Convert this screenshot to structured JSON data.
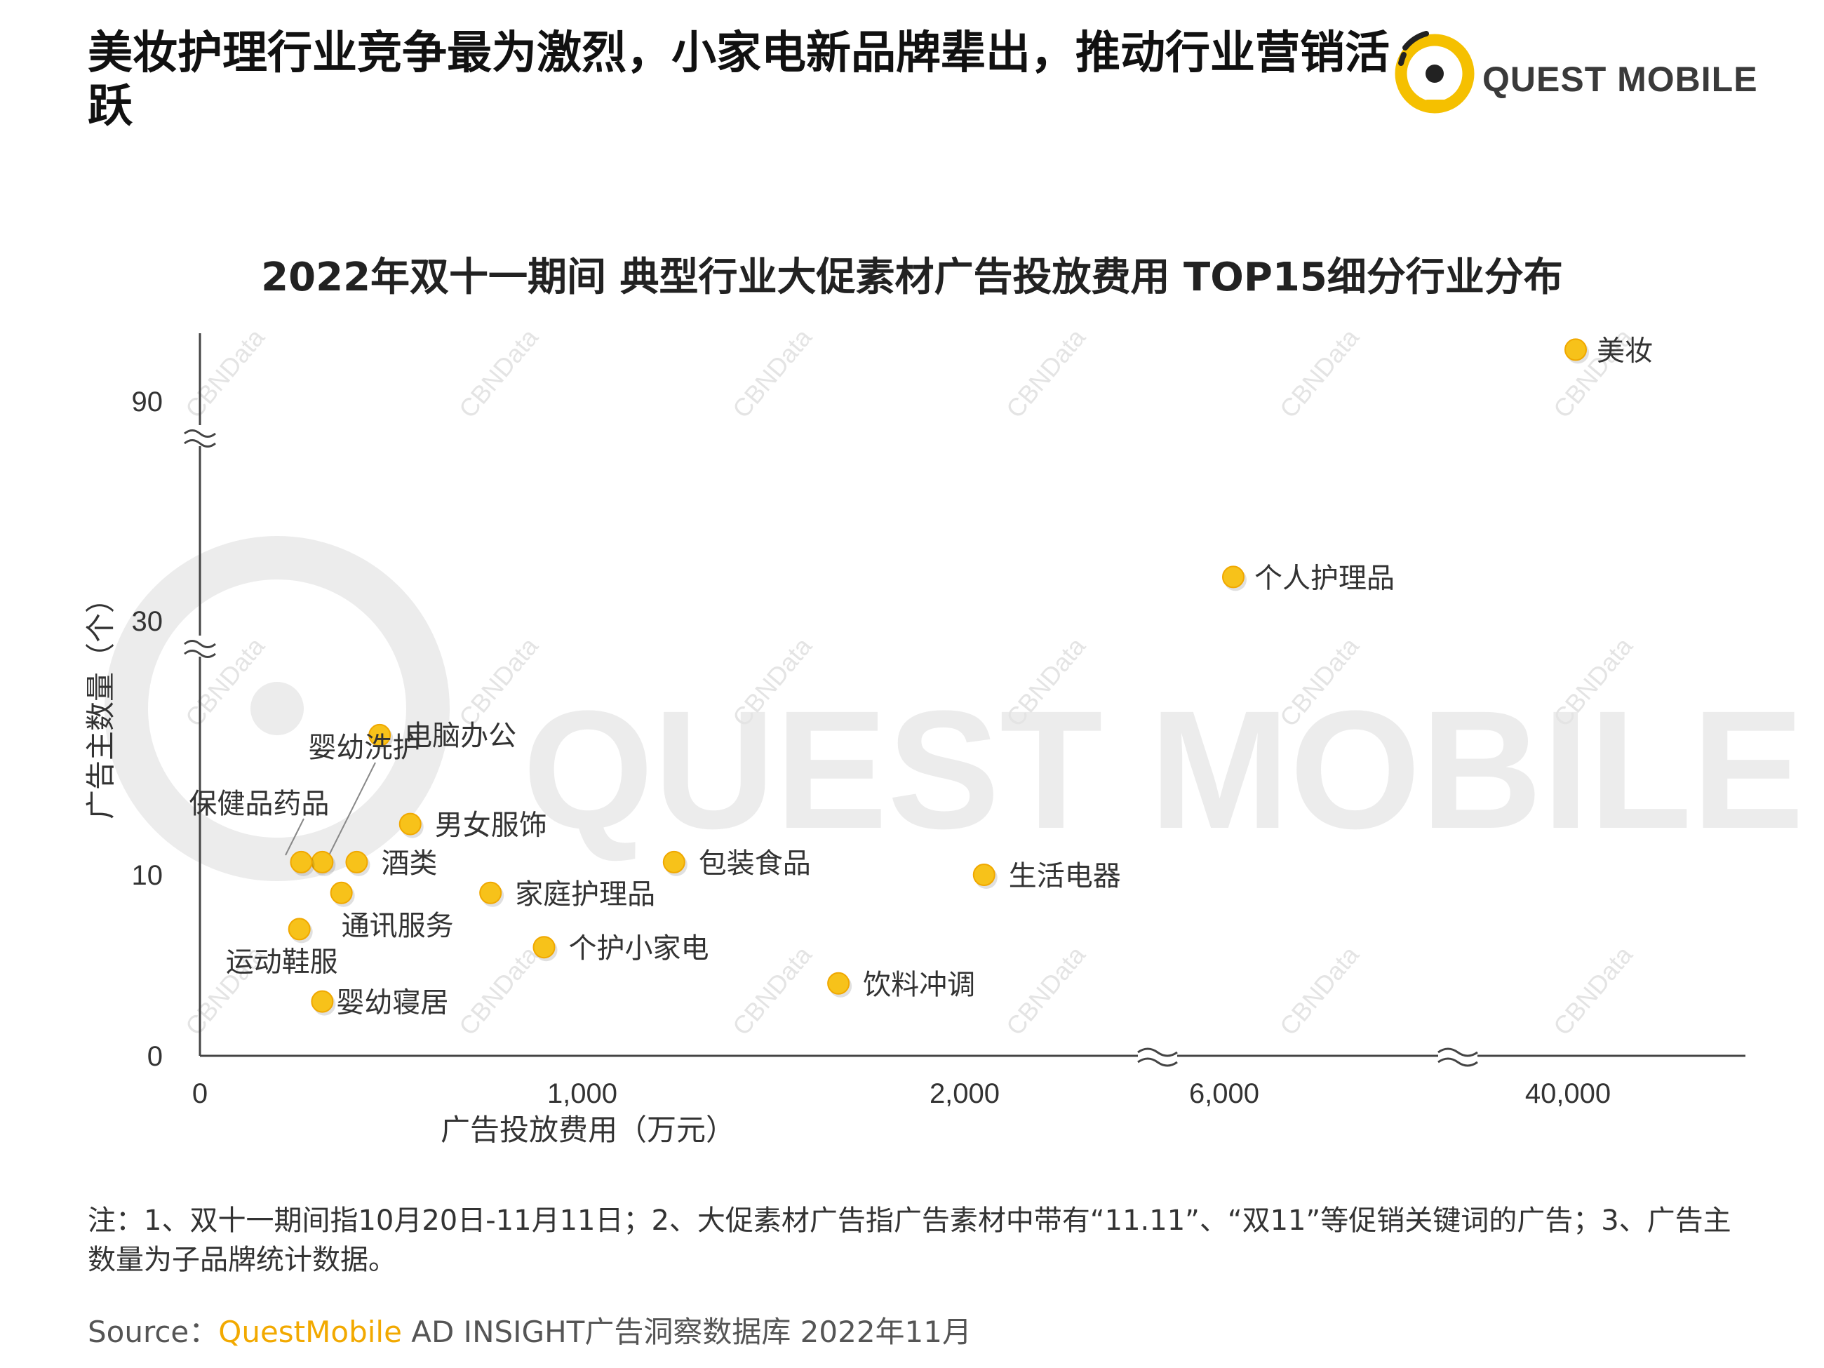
{
  "header": {
    "title": "美妆护理行业竞争最为激烈，小家电新品牌辈出，推动行业营销活跃",
    "logo_text": "QUEST MOBILE"
  },
  "chart_data": {
    "type": "scatter",
    "title": "2022年双十一期间 典型行业大促素材广告投放费用 TOP15细分行业分布",
    "xlabel": "广告投放费用（万元）",
    "ylabel": "广告主数量（个）",
    "x_scale": "broken",
    "y_scale": "broken",
    "x_ticks": [
      "0",
      "1,000",
      "2,000",
      "6,000",
      "40,000"
    ],
    "y_ticks": [
      "0",
      "10",
      "30",
      "90"
    ],
    "grid": false,
    "marker_color": "#f7c21a",
    "points": [
      {
        "label": "美妆",
        "x": 40400,
        "y": 98
      },
      {
        "label": "个人护理品",
        "x": 6900,
        "y": 42
      },
      {
        "label": "生活电器",
        "x": 2300,
        "y": 10
      },
      {
        "label": "电脑办公",
        "x": 470,
        "y": 21
      },
      {
        "label": "婴幼洗护",
        "x": 320,
        "y": 11
      },
      {
        "label": "保健品药品",
        "x": 265,
        "y": 11
      },
      {
        "label": "男女服饰",
        "x": 550,
        "y": 14
      },
      {
        "label": "酒类",
        "x": 410,
        "y": 11
      },
      {
        "label": "包装食品",
        "x": 1240,
        "y": 11
      },
      {
        "label": "通讯服务",
        "x": 370,
        "y": 9
      },
      {
        "label": "家庭护理品",
        "x": 760,
        "y": 9
      },
      {
        "label": "运动鞋服",
        "x": 260,
        "y": 7
      },
      {
        "label": "个护小家电",
        "x": 900,
        "y": 6
      },
      {
        "label": "饮料冲调",
        "x": 1670,
        "y": 4
      },
      {
        "label": "婴幼寝居",
        "x": 320,
        "y": 3
      }
    ]
  },
  "watermark": {
    "main": "QUEST MOBILE",
    "tile": "CBNData"
  },
  "notes": {
    "text": "注：1、双十一期间指10月20日-11月11日；2、大促素材广告指广告素材中带有“11.11”、“双11”等促销关键词的广告；3、广告主数量为子品牌统计数据。"
  },
  "source": {
    "prefix": "Source：",
    "brand": "QuestMobile",
    "rest": " AD INSIGHT广告洞察数据库 2022年11月"
  },
  "colors": {
    "accent": "#f2a900",
    "marker": "#f7c21a",
    "axis": "#444444",
    "watermark": "#e6e6e6"
  }
}
